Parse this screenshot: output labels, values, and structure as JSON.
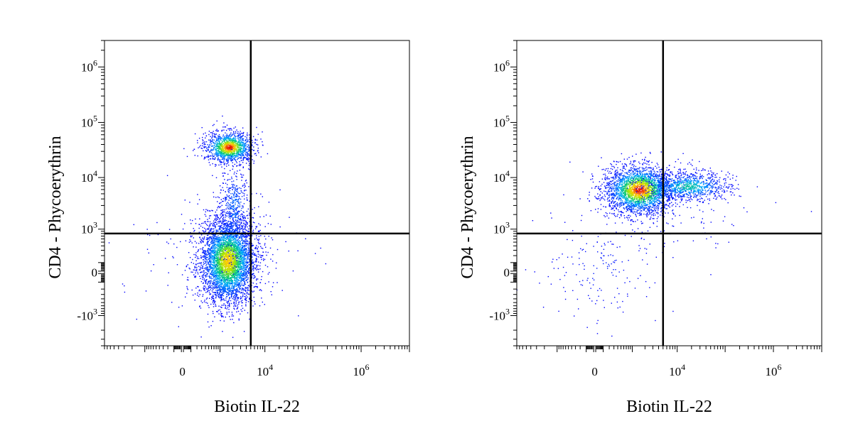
{
  "chart_data": [
    {
      "type": "scatter",
      "panel": "left",
      "xlabel": "Biotin IL-22",
      "ylabel": "CD4 - Phycoerythrin",
      "x_scale": "biexponential",
      "y_scale": "biexponential",
      "x_ticks": [
        {
          "value": 0,
          "base": "0",
          "exp": ""
        },
        {
          "value": 10000,
          "base": "10",
          "exp": "4"
        },
        {
          "value": 1000000,
          "base": "10",
          "exp": "6"
        }
      ],
      "y_ticks": [
        {
          "value": 1000000,
          "base": "10",
          "exp": "6"
        },
        {
          "value": 100000,
          "base": "10",
          "exp": "5"
        },
        {
          "value": 10000,
          "base": "10",
          "exp": "4"
        },
        {
          "value": 1000,
          "base": "10",
          "exp": "3"
        },
        {
          "value": 0,
          "base": "0",
          "exp": ""
        },
        {
          "value": -1000,
          "base": "-10",
          "exp": "3"
        }
      ],
      "quadrant_gate": {
        "x": 5000,
        "y": 800
      },
      "populations": [
        {
          "name": "CD4+ cluster",
          "x_center": 1500,
          "y_center": 25000,
          "density": "high"
        },
        {
          "name": "CD4- cluster",
          "x_center": 1000,
          "y_center": 200,
          "density": "high"
        },
        {
          "name": "bridge",
          "x_center": 1700,
          "y_center": 3000,
          "density": "low"
        }
      ]
    },
    {
      "type": "scatter",
      "panel": "right",
      "xlabel": "Biotin IL-22",
      "ylabel": "CD4 - Phycoerythrin",
      "x_scale": "biexponential",
      "y_scale": "biexponential",
      "x_ticks": [
        {
          "value": 0,
          "base": "0",
          "exp": ""
        },
        {
          "value": 10000,
          "base": "10",
          "exp": "4"
        },
        {
          "value": 1000000,
          "base": "10",
          "exp": "6"
        }
      ],
      "y_ticks": [
        {
          "value": 1000000,
          "base": "10",
          "exp": "6"
        },
        {
          "value": 100000,
          "base": "10",
          "exp": "5"
        },
        {
          "value": 10000,
          "base": "10",
          "exp": "4"
        },
        {
          "value": 1000,
          "base": "10",
          "exp": "3"
        },
        {
          "value": 0,
          "base": "0",
          "exp": ""
        },
        {
          "value": -1000,
          "base": "-10",
          "exp": "3"
        }
      ],
      "quadrant_gate": {
        "x": 5000,
        "y": 800
      },
      "populations": [
        {
          "name": "CD4+ IL-22- cluster",
          "x_center": 1000,
          "y_center": 5000,
          "density": "high"
        },
        {
          "name": "CD4+ IL-22+ cluster",
          "x_center": 15000,
          "y_center": 5000,
          "density": "medium"
        },
        {
          "name": "CD4- scatter",
          "x_center": 300,
          "y_center": 0,
          "density": "low"
        }
      ]
    }
  ]
}
